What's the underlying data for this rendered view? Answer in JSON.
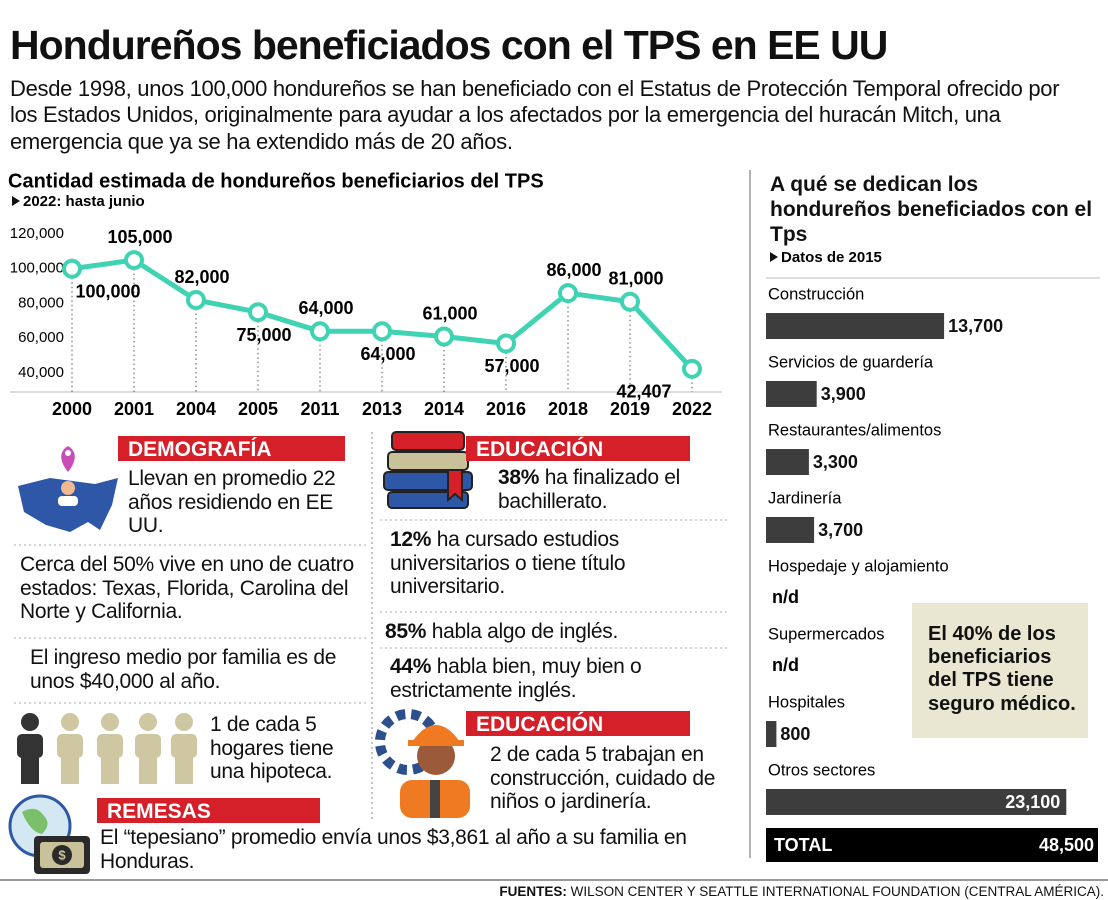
{
  "header": {
    "title": "Hondureños beneficiados con el TPS en EE UU",
    "intro": "Desde 1998, unos 100,000 hondureños se han beneficiado con el Estatus de Protección Temporal ofrecido por los Estados Unidos, originalmente para ayudar a los afectados por la emergencia del huracán Mitch, una emergencia que ya se ha extendido más de 20 años."
  },
  "chart_data": [
    {
      "type": "line",
      "title": "Cantidad estimada de hondureños beneficiarios del TPS",
      "subtitle": "2022: hasta junio",
      "categories": [
        "2000",
        "2001",
        "2004",
        "2005",
        "2011",
        "2013",
        "2014",
        "2016",
        "2018",
        "2019",
        "2022"
      ],
      "values": [
        100000,
        105000,
        82000,
        75000,
        64000,
        64000,
        61000,
        57000,
        86000,
        81000,
        42407
      ],
      "value_labels": [
        "100,000",
        "105,000",
        "82,000",
        "75,000",
        "64,000",
        "64,000",
        "61,000",
        "57,000",
        "86,000",
        "81,000",
        "42,407"
      ],
      "color": "#3fd3b3",
      "ylim": [
        35000,
        120000
      ],
      "yticks": [
        {
          "value": 40000,
          "label": "40,000"
        },
        {
          "value": 60000,
          "label": "60,000"
        },
        {
          "value": 80000,
          "label": "80,000"
        },
        {
          "value": 100000,
          "label": "100,000"
        },
        {
          "value": 120000,
          "label": "120,000"
        }
      ],
      "grid": false
    },
    {
      "type": "hbar",
      "title": "A qué se dedican los hondureños beneficiados con el Tps",
      "subtitle": "Datos de 2015",
      "categories": [
        "Construcción",
        "Servicios de guardería",
        "Restaurantes/alimentos",
        "Jardinería",
        "Hospedaje y alojamiento",
        "Supermercados",
        "Hospitales",
        "Otros sectores"
      ],
      "values": [
        13700,
        3900,
        3300,
        3700,
        null,
        null,
        800,
        23100
      ],
      "value_labels": [
        "13,700",
        "3,900",
        "3,300",
        "3,700",
        "n/d",
        "n/d",
        "800",
        "23,100"
      ],
      "color": "#3d3d3d",
      "xlim": [
        0,
        25000
      ],
      "total_label": "TOTAL",
      "total": 48500,
      "total_value_label": "48,500",
      "annotation": "El 40% de los beneficiarios del TPS tiene seguro médico."
    }
  ],
  "demografia": {
    "heading": "DEMOGRAFÍA",
    "items": [
      "Llevan en promedio 22 años residiendo en EE UU.",
      "Cerca del 50% vive en uno de cuatro estados: Texas, Florida, Carolina del Norte y California.",
      "El ingreso medio por familia es de unos $40,000 al año.",
      "1 de cada 5 hogares tiene una hipoteca."
    ]
  },
  "educacion": {
    "heading": "EDUCACIÓN",
    "items": [
      {
        "highlight": "38%",
        "text": "ha finalizado el bachillerato."
      },
      {
        "highlight": "12%",
        "text": "ha cursado estudios universitarios o tiene título universitario."
      },
      {
        "highlight": "85%",
        "text": "habla algo de inglés."
      },
      {
        "highlight": "44%",
        "text": "habla bien, muy bien o estrictamente inglés."
      }
    ]
  },
  "empleo": {
    "heading": "EDUCACIÓN",
    "text": "2 de cada 5 trabajan en construcción, cuidado de niños o jardinería."
  },
  "remesas": {
    "heading": "REMESAS",
    "text": "El “tepesiano” promedio envía unos $3,861 al año a su familia en Honduras."
  },
  "sources": {
    "label": "FUENTES:",
    "text": "WILSON CENTER Y SEATTLE INTERNATIONAL FOUNDATION (CENTRAL AMÉRICA)."
  }
}
